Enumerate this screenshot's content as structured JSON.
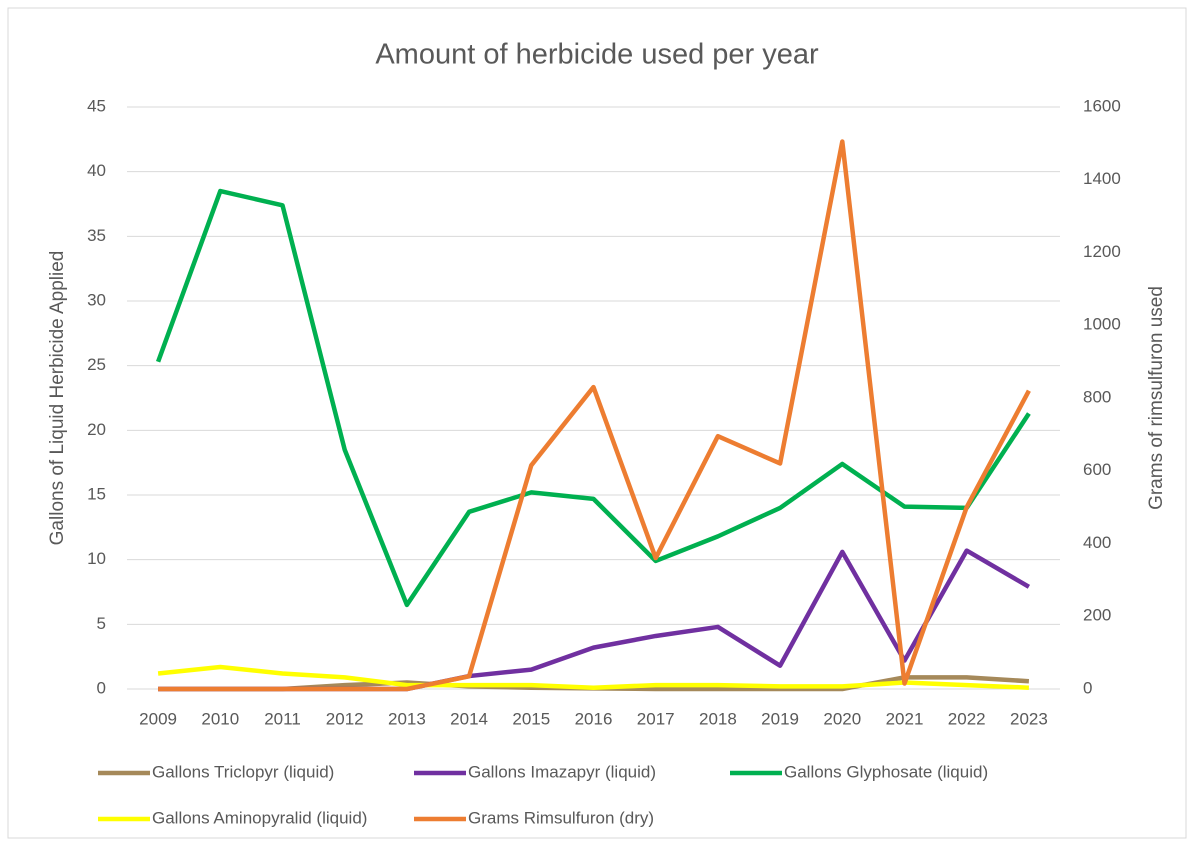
{
  "chart_data": {
    "type": "line",
    "title": "Amount of herbicide used per year",
    "y_label": "Gallons of Liquid Herbicide Applied",
    "y2_label": "Grams of rimsulfuron used",
    "categories": [
      "2009",
      "2010",
      "2011",
      "2012",
      "2013",
      "2014",
      "2015",
      "2016",
      "2017",
      "2018",
      "2019",
      "2020",
      "2021",
      "2022",
      "2023"
    ],
    "ylim": [
      0,
      45
    ],
    "yticks": [
      0,
      5,
      10,
      15,
      20,
      25,
      30,
      35,
      40,
      45
    ],
    "y2lim": [
      0,
      1600
    ],
    "y2ticks": [
      0,
      200,
      400,
      600,
      800,
      1000,
      1200,
      1400,
      1600
    ],
    "grid": true,
    "legend": "bottom",
    "series": [
      {
        "name": "Gallons Triclopyr (liquid)",
        "color": "#a5895a",
        "values": [
          0,
          0,
          0,
          0.3,
          0.5,
          0.2,
          0.1,
          0.05,
          0,
          0,
          0,
          0,
          0.9,
          0.9,
          0.6
        ]
      },
      {
        "name": "Gallons Imazapyr (liquid)",
        "color": "#7030a0",
        "values": [
          0,
          0,
          0,
          0,
          0,
          1.0,
          1.5,
          3.2,
          4.1,
          4.8,
          1.8,
          10.6,
          2.2,
          10.7,
          7.9
        ]
      },
      {
        "name": "Gallons Glyphosate (liquid)",
        "color": "#00b050",
        "values": [
          25.3,
          38.5,
          37.4,
          18.5,
          6.5,
          13.7,
          15.2,
          14.7,
          9.9,
          11.8,
          14,
          17.4,
          14.1,
          14,
          21.3
        ]
      },
      {
        "name": "Gallons Aminopyralid (liquid)",
        "color": "#ffff00",
        "values": [
          1.2,
          1.7,
          1.2,
          0.9,
          0.3,
          0.3,
          0.3,
          0.1,
          0.3,
          0.3,
          0.2,
          0.2,
          0.5,
          0.3,
          0.1
        ]
      },
      {
        "name": "Grams Rimsulfuron (dry)",
        "color": "#ed7d31",
        "axis": "y2",
        "values": [
          0,
          0,
          0,
          0,
          0,
          35,
          615,
          830,
          360,
          695,
          620,
          1505,
          15,
          500,
          820
        ]
      }
    ]
  }
}
